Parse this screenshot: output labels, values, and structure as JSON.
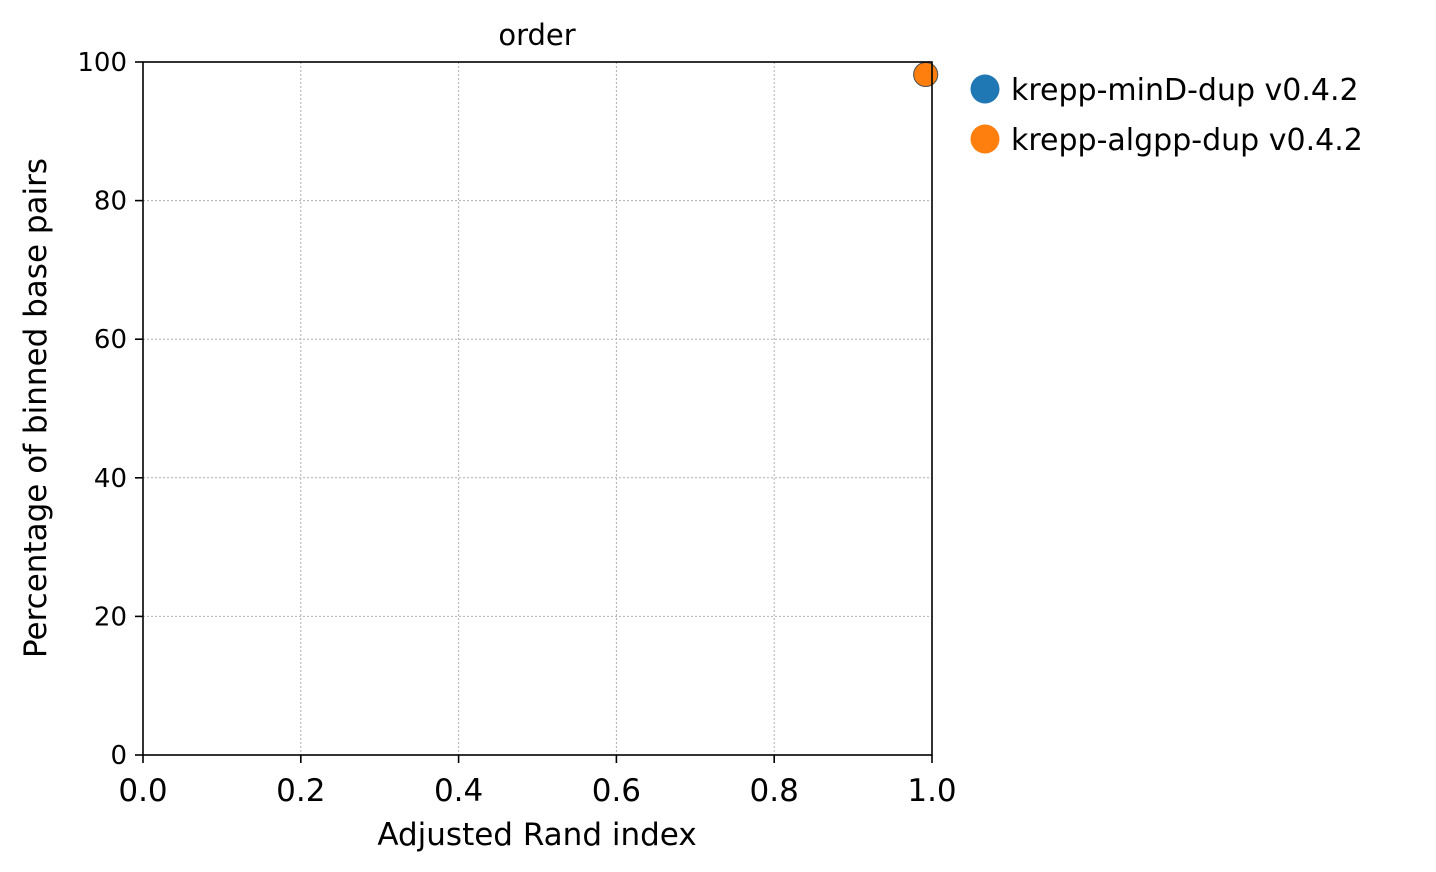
{
  "chart_data": {
    "type": "scatter",
    "title": "order",
    "xlabel": "Adjusted Rand index",
    "ylabel": "Percentage of binned base pairs",
    "xlim": [
      0.0,
      1.0
    ],
    "ylim": [
      0,
      100
    ],
    "x_ticks": [
      "0.0",
      "0.2",
      "0.4",
      "0.6",
      "0.8",
      "1.0"
    ],
    "y_ticks": [
      "0",
      "20",
      "40",
      "60",
      "80",
      "100"
    ],
    "grid": true,
    "legend_position": "outside-right-top",
    "series": [
      {
        "name": "krepp-minD-dup v0.4.2",
        "color": "#1f77b4",
        "points": [
          {
            "x": 0.992,
            "y": 98.2
          }
        ]
      },
      {
        "name": "krepp-algpp-dup v0.4.2",
        "color": "#ff7f0e",
        "points": [
          {
            "x": 0.992,
            "y": 98.2
          }
        ]
      }
    ]
  }
}
